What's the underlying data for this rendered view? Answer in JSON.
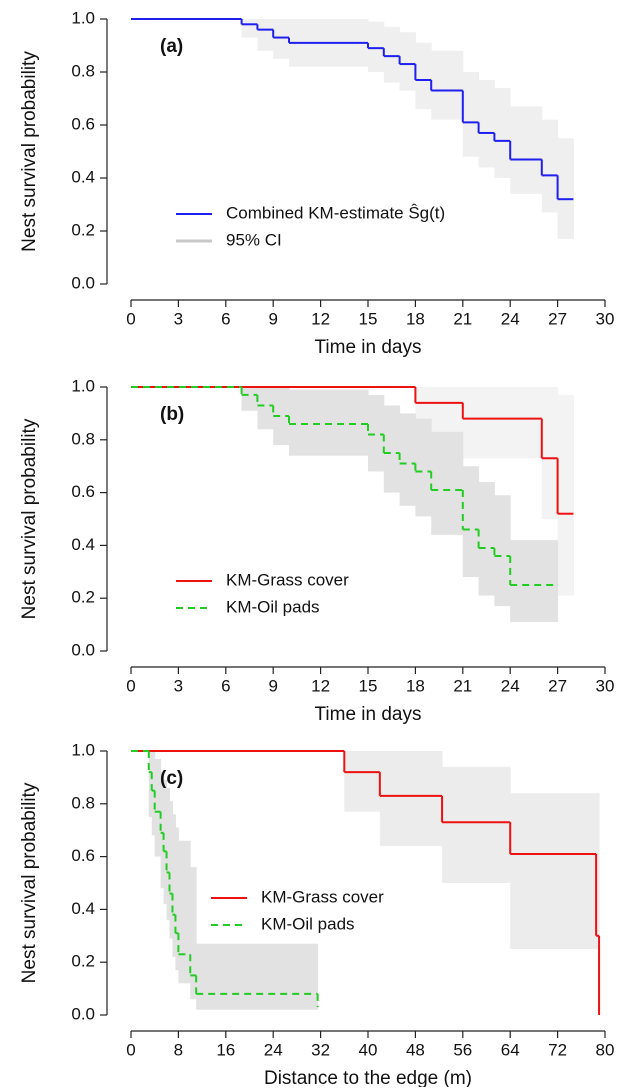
{
  "chart_data": [
    {
      "type": "step",
      "label": "(a)",
      "xlabel": "Time in days",
      "ylabel": "Nest survival probability",
      "xlim": [
        0,
        30
      ],
      "ylim": [
        0,
        1
      ],
      "xticks": [
        0,
        3,
        6,
        9,
        12,
        15,
        18,
        21,
        24,
        27,
        30
      ],
      "yticks": [
        {
          "value": 0,
          "label": "0.0"
        },
        0.2,
        0.4,
        0.6,
        0.8,
        {
          "value": 1,
          "label": "1.0"
        }
      ],
      "legend": "lower left",
      "series": [
        {
          "name": "Combined KM-estimate Ŝg(t)",
          "color": "#1f1fef",
          "style": "solid",
          "x": [
            0,
            7,
            8,
            9,
            10,
            15,
            16,
            17,
            18,
            19,
            21,
            22,
            23,
            24,
            26,
            27,
            28
          ],
          "values": [
            1.0,
            0.98,
            0.96,
            0.93,
            0.91,
            0.89,
            0.86,
            0.83,
            0.77,
            0.73,
            0.61,
            0.57,
            0.54,
            0.47,
            0.41,
            0.32,
            0.32
          ]
        },
        {
          "name": "95% CI",
          "color": "#c8c8c8",
          "ci_color": "#efefef",
          "x": [
            0,
            7,
            8,
            9,
            10,
            15,
            16,
            17,
            18,
            19,
            21,
            22,
            23,
            24,
            26,
            27,
            28
          ],
          "ci_lower": [
            1,
            0.93,
            0.88,
            0.85,
            0.82,
            0.8,
            0.76,
            0.73,
            0.66,
            0.62,
            0.48,
            0.44,
            0.4,
            0.34,
            0.27,
            0.17,
            0.17
          ],
          "ci_upper": [
            1,
            1,
            1,
            1,
            1,
            0.99,
            0.97,
            0.95,
            0.91,
            0.88,
            0.8,
            0.77,
            0.74,
            0.67,
            0.62,
            0.55,
            0.55
          ]
        }
      ]
    },
    {
      "type": "step",
      "label": "(b)",
      "xlabel": "Time in days",
      "ylabel": "Nest survival probability",
      "xlim": [
        0,
        30
      ],
      "ylim": [
        0,
        1
      ],
      "xticks": [
        0,
        3,
        6,
        9,
        12,
        15,
        18,
        21,
        24,
        27,
        30
      ],
      "yticks": [
        {
          "value": 0,
          "label": "0.0"
        },
        0.2,
        0.4,
        0.6,
        0.8,
        {
          "value": 1,
          "label": "1.0"
        }
      ],
      "legend": "lower left",
      "series": [
        {
          "name": "KM-Grass cover",
          "color": "#ee1111",
          "style": "solid",
          "ci_color": "#f3f3f3",
          "x": [
            0,
            18,
            21,
            26,
            27,
            28
          ],
          "values": [
            1.0,
            0.94,
            0.88,
            0.73,
            0.52,
            0.52
          ],
          "ci_lower": [
            1,
            0.82,
            0.73,
            0.5,
            0.21,
            0.21
          ],
          "ci_upper": [
            1,
            1,
            1,
            1,
            0.97,
            0.97
          ]
        },
        {
          "name": "KM-Oil pads",
          "color": "#22cc22",
          "style": "dashed",
          "ci_color": "#e2e2e2",
          "x": [
            0,
            7,
            8,
            9,
            10,
            15,
            16,
            17,
            18,
            19,
            21,
            22,
            23,
            24,
            27
          ],
          "values": [
            1.0,
            0.97,
            0.93,
            0.89,
            0.86,
            0.82,
            0.75,
            0.71,
            0.68,
            0.61,
            0.46,
            0.39,
            0.36,
            0.25,
            0.25
          ],
          "ci_lower": [
            1,
            0.91,
            0.84,
            0.78,
            0.74,
            0.68,
            0.6,
            0.55,
            0.51,
            0.44,
            0.28,
            0.21,
            0.17,
            0.11,
            0.11
          ],
          "ci_upper": [
            1,
            1,
            1,
            1,
            0.99,
            0.97,
            0.93,
            0.9,
            0.88,
            0.83,
            0.7,
            0.64,
            0.59,
            0.42,
            0.42
          ]
        }
      ]
    },
    {
      "type": "step",
      "label": "(c)",
      "xlabel": "Distance to the edge (m)",
      "ylabel": "Nest survival probability",
      "xlim": [
        0,
        80
      ],
      "ylim": [
        0,
        1
      ],
      "xticks": [
        0,
        8,
        16,
        24,
        32,
        40,
        48,
        56,
        64,
        72,
        80
      ],
      "yticks": [
        {
          "value": 0,
          "label": "0.0"
        },
        0.2,
        0.4,
        0.6,
        0.8,
        {
          "value": 1,
          "label": "1.0"
        }
      ],
      "legend": "center left",
      "series": [
        {
          "name": "KM-Grass cover",
          "color": "#ee1111",
          "style": "solid",
          "ci_color": "#ececec",
          "x": [
            0,
            36,
            42,
            52.5,
            64,
            78.5,
            79
          ],
          "values": [
            1.0,
            0.92,
            0.83,
            0.73,
            0.61,
            0.3,
            0.0
          ],
          "ci_lower": [
            1,
            0.77,
            0.64,
            0.5,
            0.25,
            0.25,
            0.25
          ],
          "ci_upper": [
            1,
            1,
            1,
            0.94,
            0.84,
            0.84,
            0.84
          ]
        },
        {
          "name": "KM-Oil pads",
          "color": "#22cc22",
          "style": "dashed",
          "ci_color": "#e2e2e2",
          "x": [
            0,
            3,
            3.5,
            4,
            5,
            5.5,
            6,
            6.5,
            7,
            7.5,
            8,
            10,
            11,
            31.5
          ],
          "values": [
            1.0,
            0.92,
            0.85,
            0.77,
            0.69,
            0.62,
            0.54,
            0.46,
            0.38,
            0.31,
            0.23,
            0.15,
            0.08,
            0.03
          ],
          "ci_lower": [
            1,
            0.75,
            0.68,
            0.6,
            0.48,
            0.42,
            0.36,
            0.29,
            0.22,
            0.17,
            0.12,
            0.06,
            0.02,
            0.02
          ],
          "ci_upper": [
            1,
            1,
            1,
            0.97,
            0.92,
            0.89,
            0.86,
            0.81,
            0.76,
            0.71,
            0.66,
            0.56,
            0.27,
            0.27
          ]
        }
      ]
    }
  ]
}
